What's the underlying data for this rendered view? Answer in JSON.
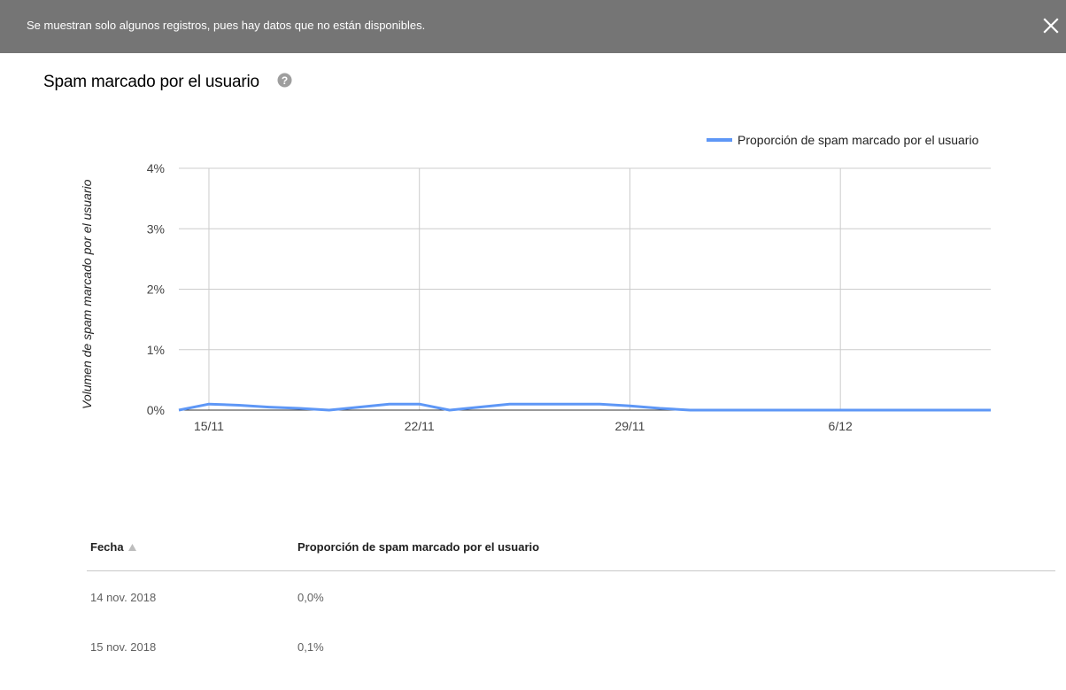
{
  "banner": {
    "message": "Se muestran solo algunos registros, pues hay datos que no están disponibles.",
    "close_icon": "close-icon"
  },
  "page": {
    "title": "Spam marcado por el usuario",
    "help_icon": "help-circle-icon"
  },
  "chart_data": {
    "type": "line",
    "title": "",
    "ylabel": "Volumen de spam marcado por el usuario",
    "xlabel": "",
    "x": [
      "14/11",
      "15/11",
      "16/11",
      "17/11",
      "18/11",
      "19/11",
      "20/11",
      "21/11",
      "22/11",
      "23/11",
      "24/11",
      "25/11",
      "26/11",
      "27/11",
      "28/11",
      "29/11",
      "30/11",
      "1/12",
      "2/12",
      "3/12",
      "4/12",
      "5/12",
      "6/12",
      "7/12",
      "8/12",
      "9/12",
      "10/12",
      "11/12"
    ],
    "x_ticks": [
      "15/11",
      "22/11",
      "29/11",
      "6/12"
    ],
    "y_ticks": [
      "0%",
      "1%",
      "2%",
      "3%",
      "4%"
    ],
    "ylim": [
      0,
      4
    ],
    "grid": true,
    "legend_position": "top-right",
    "series": [
      {
        "name": "Proporción de spam marcado por el usuario",
        "color": "#5e97f6",
        "values": [
          0.0,
          0.1,
          0.08,
          0.05,
          0.03,
          0.0,
          0.05,
          0.1,
          0.1,
          0.0,
          0.05,
          0.1,
          0.1,
          0.1,
          0.1,
          0.07,
          0.03,
          0.0,
          0.0,
          0.0,
          0.0,
          0.0,
          0.0,
          0.0,
          0.0,
          0.0,
          0.0,
          0.0
        ]
      }
    ]
  },
  "table": {
    "headers": {
      "date": "Fecha",
      "ratio": "Proporción de spam marcado por el usuario",
      "sort_icon": "sort-ascending-icon"
    },
    "rows": [
      {
        "date": "14 nov. 2018",
        "ratio": "0,0%"
      },
      {
        "date": "15 nov. 2018",
        "ratio": "0,1%"
      }
    ]
  }
}
